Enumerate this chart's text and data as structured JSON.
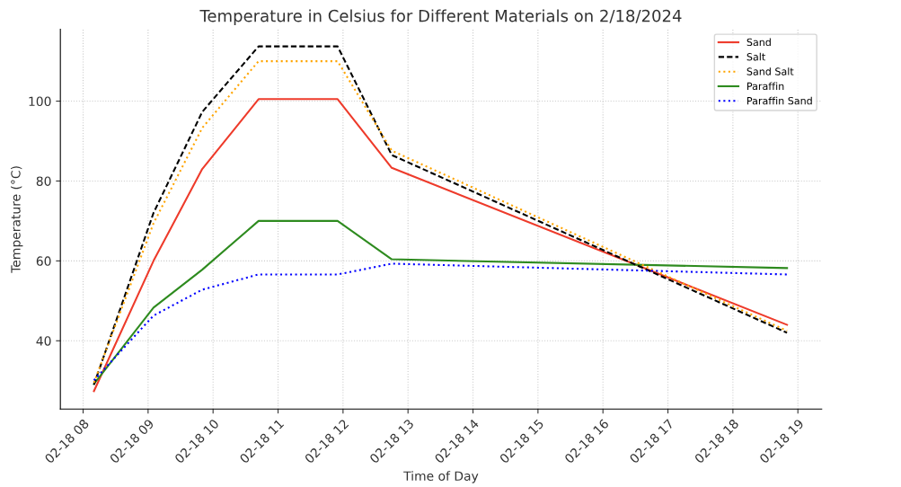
{
  "chart_data": {
    "type": "line",
    "title": "Temperature in Celsius for Different Materials on 2/18/2024",
    "xlabel": "Time of Day",
    "ylabel": "Temperature (°C)",
    "x": [
      "2024-02-18T08:10",
      "2024-02-18T09:05",
      "2024-02-18T09:50",
      "2024-02-18T10:42",
      "2024-02-18T11:55",
      "2024-02-18T12:45",
      "2024-02-18T18:50"
    ],
    "series": [
      {
        "name": "Sand",
        "color": "#ee3b2b",
        "line_style": "solid",
        "values": [
          27.4,
          60,
          83,
          100.5,
          100.5,
          83.3,
          44
        ]
      },
      {
        "name": "Salt",
        "color": "#000000",
        "line_style": "dashed",
        "values": [
          29,
          72,
          97.3,
          113.7,
          113.7,
          86.5,
          42
        ]
      },
      {
        "name": "Sand Salt",
        "color": "#ffa500",
        "line_style": "dotted",
        "values": [
          29.5,
          69.4,
          93.3,
          110,
          110,
          87.6,
          42.5
        ]
      },
      {
        "name": "Paraffin",
        "color": "#2e8b1f",
        "line_style": "solid",
        "values": [
          29.2,
          48.3,
          57.8,
          70,
          70,
          60.4,
          58.2
        ]
      },
      {
        "name": "Paraffin Sand",
        "color": "#0000ff",
        "line_style": "dotted",
        "values": [
          30.1,
          46.3,
          52.8,
          56.6,
          56.6,
          59.3,
          56.6
        ]
      }
    ],
    "xlim": [
      "2024-02-18T07:39",
      "2024-02-18T19:22"
    ],
    "xticks": [
      {
        "value": "2024-02-18T08:00",
        "label": "02-18 08"
      },
      {
        "value": "2024-02-18T09:00",
        "label": "02-18 09"
      },
      {
        "value": "2024-02-18T10:00",
        "label": "02-18 10"
      },
      {
        "value": "2024-02-18T11:00",
        "label": "02-18 11"
      },
      {
        "value": "2024-02-18T12:00",
        "label": "02-18 12"
      },
      {
        "value": "2024-02-18T13:00",
        "label": "02-18 13"
      },
      {
        "value": "2024-02-18T14:00",
        "label": "02-18 14"
      },
      {
        "value": "2024-02-18T15:00",
        "label": "02-18 15"
      },
      {
        "value": "2024-02-18T16:00",
        "label": "02-18 16"
      },
      {
        "value": "2024-02-18T17:00",
        "label": "02-18 17"
      },
      {
        "value": "2024-02-18T18:00",
        "label": "02-18 18"
      },
      {
        "value": "2024-02-18T19:00",
        "label": "02-18 19"
      }
    ],
    "ylim": [
      22.9,
      118
    ],
    "yticks": [
      40,
      60,
      80,
      100
    ],
    "grid": true,
    "legend": "top right",
    "marker": "none"
  }
}
